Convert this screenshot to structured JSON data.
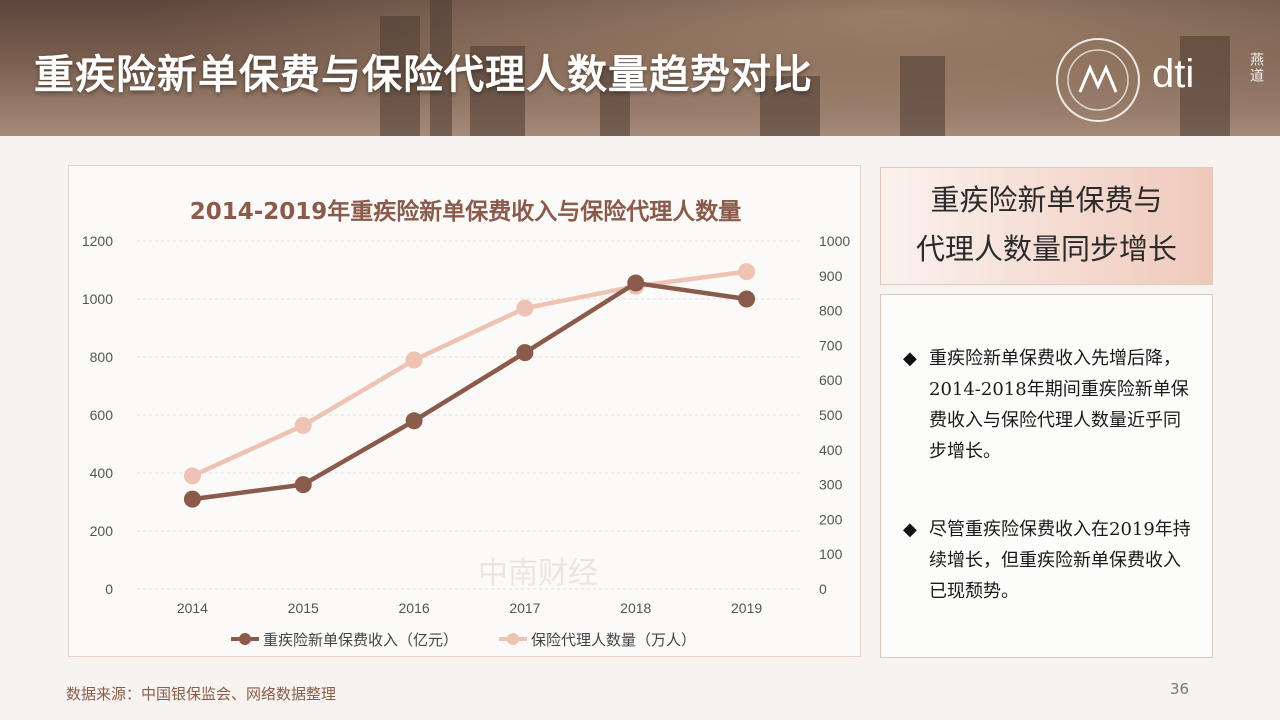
{
  "header": {
    "title": "重疾险新单保费与保险代理人数量趋势对比",
    "logo_text": "dti",
    "logo_sub": "燕道"
  },
  "chart_data": {
    "type": "line",
    "title": "2014-2019年重疾险新单保费收入与保险代理人数量",
    "categories": [
      "2014",
      "2015",
      "2016",
      "2017",
      "2018",
      "2019"
    ],
    "y_left": {
      "ticks": [
        "0",
        "200",
        "400",
        "600",
        "800",
        "1000",
        "1200"
      ],
      "ylim": [
        0,
        1200
      ]
    },
    "y_right": {
      "ticks": [
        "0",
        "100",
        "200",
        "300",
        "400",
        "500",
        "600",
        "700",
        "800",
        "900",
        "1000"
      ],
      "ylim": [
        0,
        1000
      ]
    },
    "series": [
      {
        "name": "重疾险新单保费收入（亿元）",
        "axis": "left",
        "color": "#8a5a4a",
        "values": [
          310,
          360,
          580,
          815,
          1055,
          1000
        ]
      },
      {
        "name": "保险代理人数量（万人）",
        "axis": "right",
        "color": "#efc3b3",
        "values": [
          325,
          470,
          658,
          807,
          870,
          912
        ]
      }
    ],
    "grid": true,
    "legend": "bottom"
  },
  "watermark": "中南财经",
  "summary": {
    "heading_line1": "重疾险新单保费与",
    "heading_line2": "代理人数量同步增长",
    "bullet_mark": "◆",
    "bullets": [
      "重疾险新单保费收入先增后降，2014-2018年期间重疾险新单保费收入与保险代理人数量近乎同步增长。",
      "尽管重疾险保费收入在2019年持续增长，但重疾险新单保费收入已现颓势。"
    ]
  },
  "footer": {
    "source": "数据来源：中国银保监会、网络数据整理",
    "page": "36"
  },
  "colors": {
    "accent": "#8a5a4a",
    "accent_light": "#efc3b3",
    "panel_border": "#e6c6b7"
  }
}
